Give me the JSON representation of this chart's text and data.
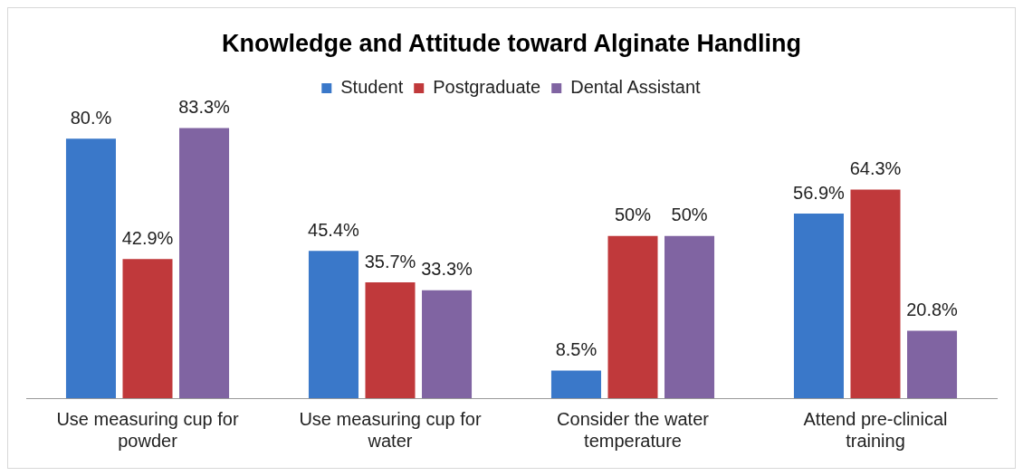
{
  "chart_data": {
    "type": "bar",
    "title": "Knowledge and Attitude toward Alginate Handling",
    "categories": [
      "Use measuring cup for powder",
      "Use measuring cup for water",
      "Consider the water temperature",
      "Attend pre-clinical training"
    ],
    "series": [
      {
        "name": "Student",
        "color": "#3a78c9",
        "values": [
          80,
          45.4,
          8.5,
          56.9
        ],
        "value_labels": [
          "80.%",
          "45.4%",
          "8.5%",
          "56.9%"
        ]
      },
      {
        "name": "Postgraduate",
        "color": "#c0393b",
        "values": [
          42.9,
          35.7,
          50,
          64.3
        ],
        "value_labels": [
          "42.9%",
          "35.7%",
          "50%",
          "64.3%"
        ]
      },
      {
        "name": "Dental Assistant",
        "color": "#8064a2",
        "values": [
          83.3,
          33.3,
          50,
          20.8
        ],
        "value_labels": [
          "83.3%",
          "33.3%",
          "50%",
          "20.8%"
        ]
      }
    ],
    "legend": "top",
    "grid": false
  }
}
